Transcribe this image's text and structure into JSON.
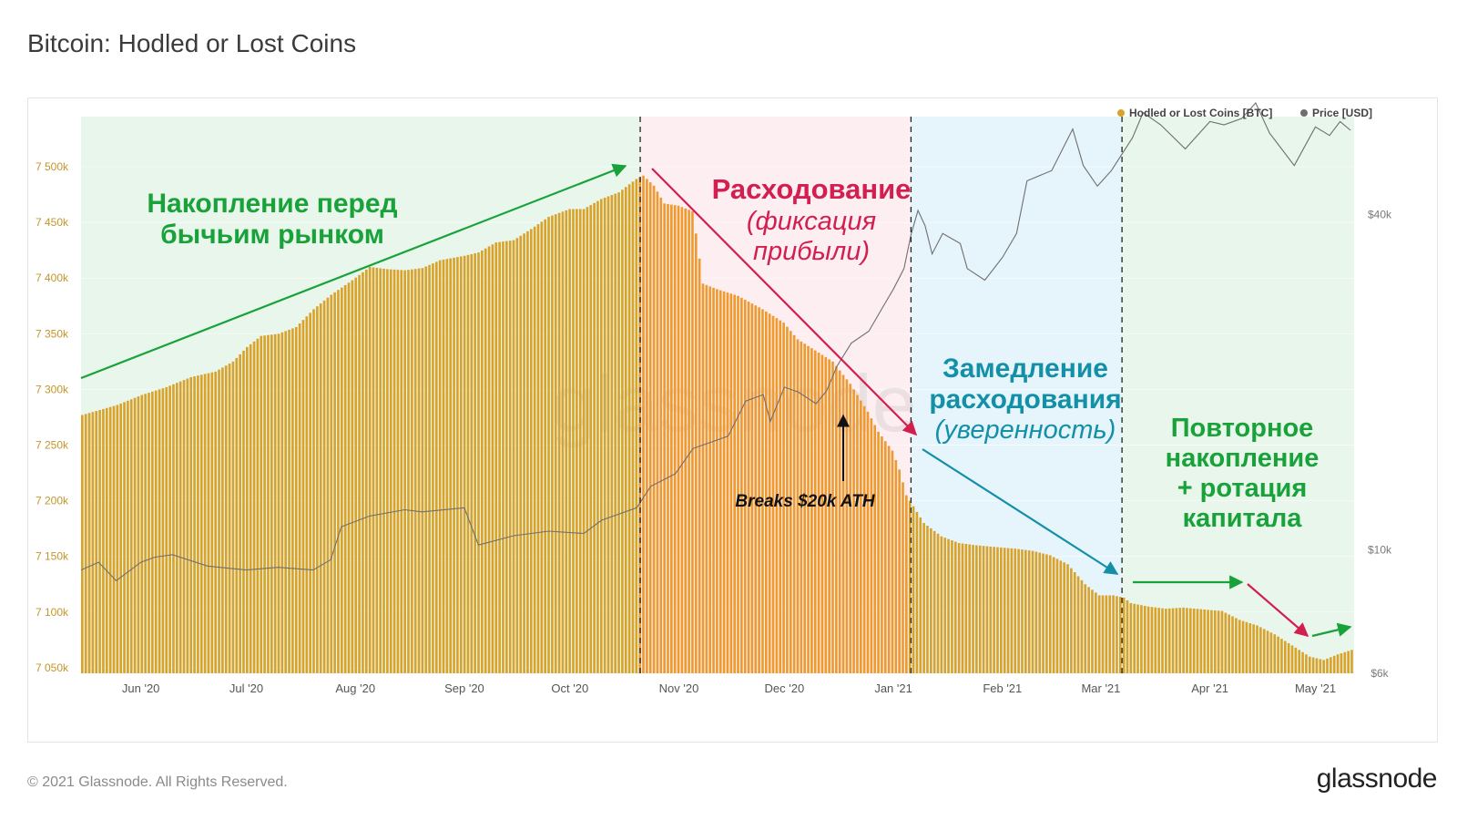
{
  "page": {
    "title": "Bitcoin: Hodled or Lost Coins",
    "copyright": "© 2021 Glassnode. All Rights Reserved.",
    "logo": "glassnode",
    "watermark": "glassnode"
  },
  "colors": {
    "bars_default": "#d9a32b",
    "bars_distribution": "#ee9a2e",
    "price_line": "#6f6f6f",
    "accum_bg": "#e8f6ec",
    "distrib_bg": "#fdeef2",
    "slowdown_bg": "#e6f5fb",
    "green": "#1aa23a",
    "crimson": "#d21f4f",
    "teal": "#1390a8",
    "axis_left": "#c4962b",
    "axis_right": "#7a7a7a"
  },
  "chart_data": {
    "type": "bar",
    "title": "Bitcoin: Hodled or Lost Coins",
    "legend": {
      "placement": "top-right",
      "items": [
        {
          "name": "Hodled or Lost Coins [BTC]",
          "color": "#d9a32b"
        },
        {
          "name": "Price [USD]",
          "color": "#6f6f6f"
        }
      ]
    },
    "x_start": "2020-05-15",
    "x_end": "2021-05-12",
    "x_ticks": [
      {
        "label": "Jun '20",
        "date": "2020-06-01"
      },
      {
        "label": "Jul '20",
        "date": "2020-07-01"
      },
      {
        "label": "Aug '20",
        "date": "2020-08-01"
      },
      {
        "label": "Sep '20",
        "date": "2020-09-01"
      },
      {
        "label": "Oct '20",
        "date": "2020-10-01"
      },
      {
        "label": "Nov '20",
        "date": "2020-11-01"
      },
      {
        "label": "Dec '20",
        "date": "2020-12-01"
      },
      {
        "label": "Jan '21",
        "date": "2021-01-01"
      },
      {
        "label": "Feb '21",
        "date": "2021-02-01"
      },
      {
        "label": "Mar '21",
        "date": "2021-03-01"
      },
      {
        "label": "Apr '21",
        "date": "2021-04-01"
      },
      {
        "label": "May '21",
        "date": "2021-05-01"
      }
    ],
    "y_left": {
      "min": 7045000,
      "max": 7545000,
      "ticks": [
        {
          "label": "7 050k",
          "value": 7050000
        },
        {
          "label": "7 100k",
          "value": 7100000
        },
        {
          "label": "7 150k",
          "value": 7150000
        },
        {
          "label": "7 200k",
          "value": 7200000
        },
        {
          "label": "7 250k",
          "value": 7250000
        },
        {
          "label": "7 300k",
          "value": 7300000
        },
        {
          "label": "7 350k",
          "value": 7350000
        },
        {
          "label": "7 400k",
          "value": 7400000
        },
        {
          "label": "7 450k",
          "value": 7450000
        },
        {
          "label": "7 500k",
          "value": 7500000
        }
      ]
    },
    "y_right": {
      "scale": "log",
      "min": 6000,
      "max": 60000,
      "ticks": [
        {
          "label": "$6k",
          "value": 6000
        },
        {
          "label": "$10k",
          "value": 10000
        },
        {
          "label": "$40k",
          "value": 40000
        }
      ]
    },
    "series": [
      {
        "name": "Hodled or Lost Coins [BTC]",
        "kind": "bar",
        "points": [
          [
            "2020-05-15",
            7277000
          ],
          [
            "2020-05-25",
            7286000
          ],
          [
            "2020-06-01",
            7295000
          ],
          [
            "2020-06-08",
            7302000
          ],
          [
            "2020-06-15",
            7311000
          ],
          [
            "2020-06-22",
            7316000
          ],
          [
            "2020-06-27",
            7325000
          ],
          [
            "2020-07-01",
            7338000
          ],
          [
            "2020-07-05",
            7348000
          ],
          [
            "2020-07-10",
            7350000
          ],
          [
            "2020-07-15",
            7356000
          ],
          [
            "2020-07-20",
            7372000
          ],
          [
            "2020-07-25",
            7385000
          ],
          [
            "2020-07-31",
            7398000
          ],
          [
            "2020-08-05",
            7410000
          ],
          [
            "2020-08-10",
            7408000
          ],
          [
            "2020-08-15",
            7407000
          ],
          [
            "2020-08-20",
            7409000
          ],
          [
            "2020-08-25",
            7416000
          ],
          [
            "2020-09-01",
            7420000
          ],
          [
            "2020-09-05",
            7423000
          ],
          [
            "2020-09-10",
            7432000
          ],
          [
            "2020-09-15",
            7434000
          ],
          [
            "2020-09-20",
            7444000
          ],
          [
            "2020-09-25",
            7455000
          ],
          [
            "2020-10-01",
            7462000
          ],
          [
            "2020-10-05",
            7462000
          ],
          [
            "2020-10-10",
            7471000
          ],
          [
            "2020-10-15",
            7477000
          ],
          [
            "2020-10-20",
            7489000
          ],
          [
            "2020-10-22",
            7492000
          ],
          [
            "2020-10-25",
            7483000
          ],
          [
            "2020-10-28",
            7467000
          ],
          [
            "2020-11-01",
            7465000
          ],
          [
            "2020-11-05",
            7460000
          ],
          [
            "2020-11-06",
            7440000
          ],
          [
            "2020-11-08",
            7395000
          ],
          [
            "2020-11-12",
            7390000
          ],
          [
            "2020-11-18",
            7384000
          ],
          [
            "2020-11-25",
            7372000
          ],
          [
            "2020-12-01",
            7360000
          ],
          [
            "2020-12-05",
            7345000
          ],
          [
            "2020-12-10",
            7335000
          ],
          [
            "2020-12-15",
            7325000
          ],
          [
            "2020-12-20",
            7305000
          ],
          [
            "2020-12-25",
            7280000
          ],
          [
            "2020-12-28",
            7262000
          ],
          [
            "2021-01-01",
            7245000
          ],
          [
            "2021-01-03",
            7228000
          ],
          [
            "2021-01-05",
            7205000
          ],
          [
            "2021-01-08",
            7190000
          ],
          [
            "2021-01-10",
            7180000
          ],
          [
            "2021-01-15",
            7168000
          ],
          [
            "2021-01-20",
            7162000
          ],
          [
            "2021-01-25",
            7160000
          ],
          [
            "2021-02-01",
            7158000
          ],
          [
            "2021-02-05",
            7157000
          ],
          [
            "2021-02-10",
            7155000
          ],
          [
            "2021-02-15",
            7151000
          ],
          [
            "2021-02-20",
            7143000
          ],
          [
            "2021-02-25",
            7125000
          ],
          [
            "2021-03-01",
            7115000
          ],
          [
            "2021-03-05",
            7115000
          ],
          [
            "2021-03-08",
            7113000
          ],
          [
            "2021-03-10",
            7108000
          ],
          [
            "2021-03-15",
            7105000
          ],
          [
            "2021-03-20",
            7103000
          ],
          [
            "2021-03-25",
            7104000
          ],
          [
            "2021-04-01",
            7102000
          ],
          [
            "2021-04-05",
            7101000
          ],
          [
            "2021-04-10",
            7093000
          ],
          [
            "2021-04-15",
            7088000
          ],
          [
            "2021-04-20",
            7080000
          ],
          [
            "2021-04-25",
            7070000
          ],
          [
            "2021-04-30",
            7060000
          ],
          [
            "2021-05-04",
            7057000
          ],
          [
            "2021-05-08",
            7062000
          ],
          [
            "2021-05-12",
            7066000
          ]
        ]
      },
      {
        "name": "Price [USD]",
        "kind": "line",
        "points": [
          [
            "2020-05-15",
            9200
          ],
          [
            "2020-05-20",
            9500
          ],
          [
            "2020-05-25",
            8800
          ],
          [
            "2020-06-01",
            9500
          ],
          [
            "2020-06-05",
            9700
          ],
          [
            "2020-06-10",
            9800
          ],
          [
            "2020-06-20",
            9350
          ],
          [
            "2020-07-01",
            9200
          ],
          [
            "2020-07-10",
            9300
          ],
          [
            "2020-07-20",
            9200
          ],
          [
            "2020-07-25",
            9600
          ],
          [
            "2020-07-28",
            11000
          ],
          [
            "2020-08-05",
            11500
          ],
          [
            "2020-08-15",
            11800
          ],
          [
            "2020-08-20",
            11700
          ],
          [
            "2020-09-01",
            11900
          ],
          [
            "2020-09-05",
            10200
          ],
          [
            "2020-09-15",
            10600
          ],
          [
            "2020-09-25",
            10800
          ],
          [
            "2020-10-05",
            10700
          ],
          [
            "2020-10-10",
            11300
          ],
          [
            "2020-10-20",
            11900
          ],
          [
            "2020-10-24",
            13000
          ],
          [
            "2020-10-31",
            13700
          ],
          [
            "2020-11-05",
            15200
          ],
          [
            "2020-11-15",
            16000
          ],
          [
            "2020-11-20",
            18500
          ],
          [
            "2020-11-25",
            19000
          ],
          [
            "2020-11-27",
            17000
          ],
          [
            "2020-12-01",
            19600
          ],
          [
            "2020-12-05",
            19200
          ],
          [
            "2020-12-10",
            18300
          ],
          [
            "2020-12-13",
            19300
          ],
          [
            "2020-12-16",
            21400
          ],
          [
            "2020-12-20",
            23500
          ],
          [
            "2020-12-25",
            24700
          ],
          [
            "2020-12-29",
            27300
          ],
          [
            "2021-01-01",
            29400
          ],
          [
            "2021-01-04",
            32000
          ],
          [
            "2021-01-06",
            36800
          ],
          [
            "2021-01-08",
            40700
          ],
          [
            "2021-01-10",
            38200
          ],
          [
            "2021-01-12",
            34000
          ],
          [
            "2021-01-15",
            37000
          ],
          [
            "2021-01-20",
            35500
          ],
          [
            "2021-01-22",
            32000
          ],
          [
            "2021-01-27",
            30500
          ],
          [
            "2021-02-01",
            33500
          ],
          [
            "2021-02-05",
            37000
          ],
          [
            "2021-02-08",
            46000
          ],
          [
            "2021-02-15",
            48000
          ],
          [
            "2021-02-21",
            57000
          ],
          [
            "2021-02-24",
            49000
          ],
          [
            "2021-02-28",
            45000
          ],
          [
            "2021-03-04",
            48000
          ],
          [
            "2021-03-10",
            55000
          ],
          [
            "2021-03-13",
            61000
          ],
          [
            "2021-03-18",
            58000
          ],
          [
            "2021-03-25",
            52500
          ],
          [
            "2021-04-01",
            58800
          ],
          [
            "2021-04-05",
            58000
          ],
          [
            "2021-04-10",
            59500
          ],
          [
            "2021-04-14",
            63500
          ],
          [
            "2021-04-18",
            56000
          ],
          [
            "2021-04-25",
            49000
          ],
          [
            "2021-05-01",
            57500
          ],
          [
            "2021-05-05",
            55500
          ],
          [
            "2021-05-08",
            58800
          ],
          [
            "2021-05-11",
            56700
          ]
        ]
      }
    ],
    "phases": [
      {
        "name": "accumulation",
        "from": "2020-05-15",
        "to": "2020-10-21",
        "color": "#e8f6ec"
      },
      {
        "name": "distribution",
        "from": "2020-10-21",
        "to": "2021-01-06",
        "color": "#fdeef2"
      },
      {
        "name": "slowdown",
        "from": "2021-01-06",
        "to": "2021-03-07",
        "color": "#e6f5fb"
      },
      {
        "name": "reaccumulation",
        "from": "2021-03-07",
        "to": "2021-05-12",
        "color": "#e8f6ec"
      }
    ],
    "phase_lines": [
      "2020-10-21",
      "2021-01-06",
      "2021-03-07"
    ],
    "annotations": [
      {
        "id": "accum",
        "color": "#1aa23a",
        "lines": [
          "Накопление перед",
          "бычьим рынком"
        ],
        "style": "bold"
      },
      {
        "id": "dist-title",
        "color": "#d21f4f",
        "lines": [
          "Расходование"
        ],
        "style": "bold"
      },
      {
        "id": "dist-sub",
        "color": "#d21f4f",
        "lines": [
          "(фиксация",
          "прибыли)"
        ],
        "style": "italic"
      },
      {
        "id": "slow-title",
        "color": "#1390a8",
        "lines": [
          "Замедление",
          "расходования"
        ],
        "style": "bold"
      },
      {
        "id": "slow-sub",
        "color": "#1390a8",
        "lines": [
          "(уверенность)"
        ],
        "style": "italic"
      },
      {
        "id": "reacc",
        "color": "#1aa23a",
        "lines": [
          "Повторное",
          "накопление",
          "+ ротация",
          "капитала"
        ],
        "style": "bold"
      },
      {
        "id": "ath",
        "color": "#111111",
        "lines": [
          "Breaks $20k ATH"
        ],
        "style": "bold-italic"
      }
    ]
  }
}
